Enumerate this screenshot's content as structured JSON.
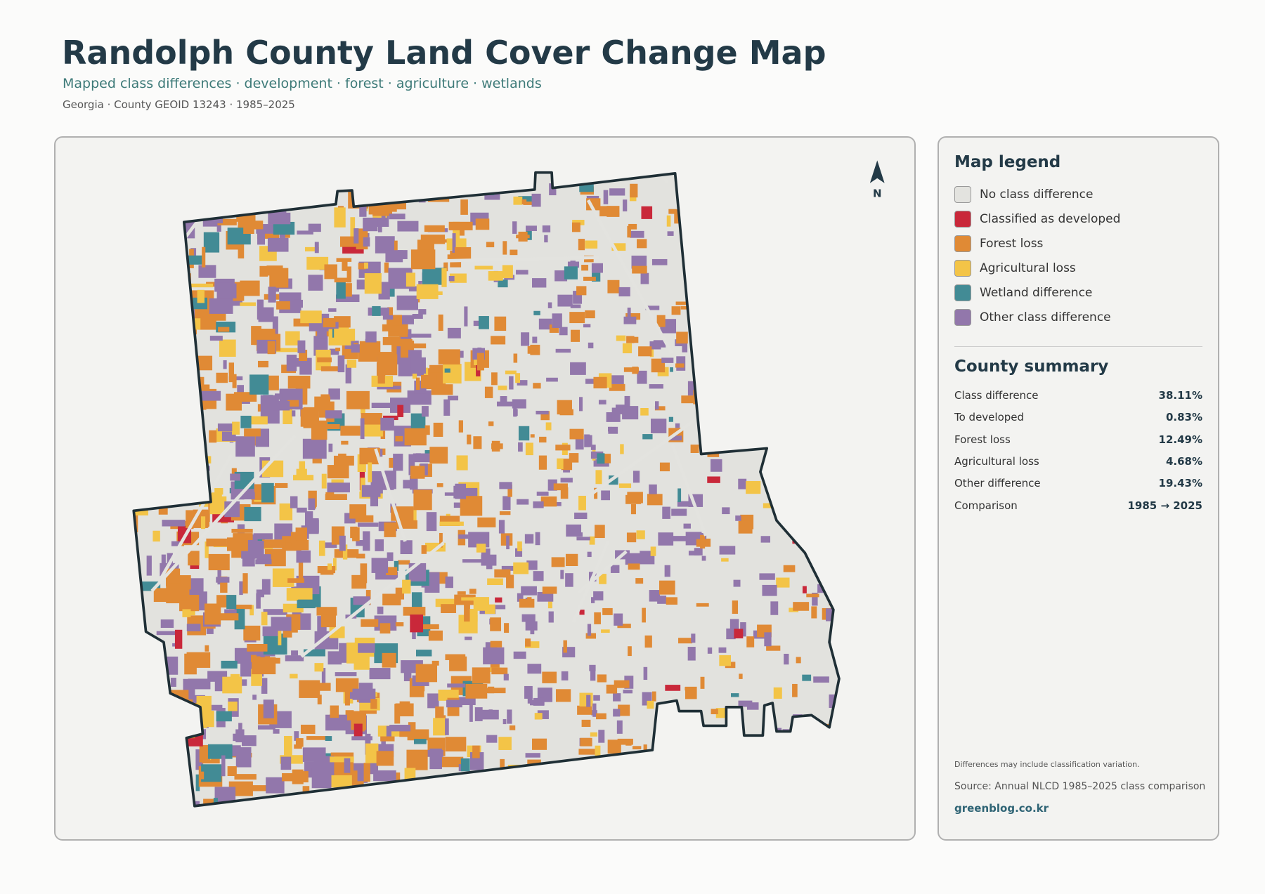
{
  "header": {
    "title": "Randolph County Land Cover Change Map",
    "subtitle": "Mapped class differences · development · forest · agriculture · wetlands",
    "meta": "Georgia · County GEOID 13243 · 1985–2025"
  },
  "map": {
    "north_label": "N"
  },
  "legend": {
    "title": "Map legend",
    "items": [
      {
        "label": "No class difference",
        "color": "#e3e3df"
      },
      {
        "label": "Classified as developed",
        "color": "#c9283a"
      },
      {
        "label": "Forest loss",
        "color": "#e08a35"
      },
      {
        "label": "Agricultural loss",
        "color": "#f3c447"
      },
      {
        "label": "Wetland difference",
        "color": "#428b95"
      },
      {
        "label": "Other class difference",
        "color": "#9277ab"
      }
    ]
  },
  "summary": {
    "title": "County summary",
    "rows": [
      {
        "label": "Class difference",
        "value": "38.11%"
      },
      {
        "label": "To developed",
        "value": "0.83%"
      },
      {
        "label": "Forest loss",
        "value": "12.49%"
      },
      {
        "label": "Agricultural loss",
        "value": "4.68%"
      },
      {
        "label": "Other difference",
        "value": "19.43%"
      },
      {
        "label": "Comparison",
        "value": "1985 → 2025"
      }
    ]
  },
  "footer": {
    "note": "Differences may include classification variation.",
    "source": "Source: Annual NLCD 1985–2025 class comparison",
    "site": "greenblog.co.kr"
  }
}
